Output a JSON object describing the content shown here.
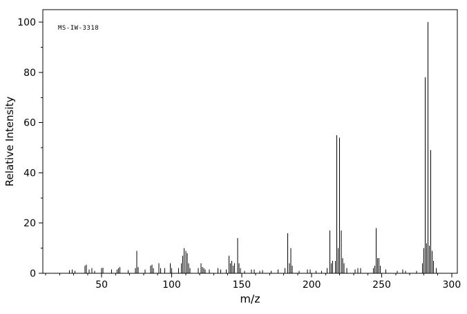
{
  "annotation": "MS-IW-3318",
  "colors": {
    "axis": "#000000",
    "peak": "#000000",
    "background": "#ffffff"
  },
  "chart_data": {
    "type": "bar",
    "subtype": "mass-spectrum-stick-plot",
    "xlabel": "m/z",
    "ylabel": "Relative Intensity",
    "xlim": [
      8,
      304
    ],
    "ylim": [
      0,
      105
    ],
    "xticks_major": [
      50,
      100,
      150,
      200,
      250,
      300
    ],
    "xticks_minor_step": 10,
    "yticks_major": [
      0,
      20,
      40,
      60,
      80,
      100
    ],
    "yticks_minor_step": 10,
    "grid": false,
    "legend": false,
    "peaks": [
      [
        27,
        1.2
      ],
      [
        29,
        1.5
      ],
      [
        31,
        1
      ],
      [
        38,
        3
      ],
      [
        39,
        3.5
      ],
      [
        41,
        1.5
      ],
      [
        43,
        2
      ],
      [
        45,
        1
      ],
      [
        50,
        2
      ],
      [
        51,
        2.2
      ],
      [
        57,
        1.5
      ],
      [
        61,
        1.5
      ],
      [
        62,
        2
      ],
      [
        63,
        2.5
      ],
      [
        69,
        1.2
      ],
      [
        74,
        2
      ],
      [
        75,
        9
      ],
      [
        76,
        2.5
      ],
      [
        81,
        1.5
      ],
      [
        85,
        3
      ],
      [
        86,
        3.5
      ],
      [
        87,
        2
      ],
      [
        91,
        4
      ],
      [
        92,
        2
      ],
      [
        95,
        2
      ],
      [
        99,
        4
      ],
      [
        100,
        2
      ],
      [
        105,
        2
      ],
      [
        107,
        4
      ],
      [
        108,
        7
      ],
      [
        109,
        10
      ],
      [
        110,
        9
      ],
      [
        111,
        8
      ],
      [
        112,
        4
      ],
      [
        113,
        2
      ],
      [
        119,
        2
      ],
      [
        121,
        4
      ],
      [
        122,
        2.5
      ],
      [
        123,
        2
      ],
      [
        124,
        1.5
      ],
      [
        127,
        1.5
      ],
      [
        133,
        2
      ],
      [
        135,
        1.5
      ],
      [
        139,
        1.5
      ],
      [
        141,
        7
      ],
      [
        142,
        4
      ],
      [
        143,
        5
      ],
      [
        144,
        3
      ],
      [
        145,
        4
      ],
      [
        147,
        14
      ],
      [
        148,
        4
      ],
      [
        149,
        2
      ],
      [
        152,
        1
      ],
      [
        157,
        1.5
      ],
      [
        159,
        1.5
      ],
      [
        163,
        1
      ],
      [
        165,
        1.2
      ],
      [
        171,
        1
      ],
      [
        176,
        1.5
      ],
      [
        181,
        2
      ],
      [
        183,
        16
      ],
      [
        184,
        4
      ],
      [
        185,
        10
      ],
      [
        186,
        3
      ],
      [
        191,
        1
      ],
      [
        197,
        1.5
      ],
      [
        199,
        1.5
      ],
      [
        203,
        1
      ],
      [
        207,
        1
      ],
      [
        211,
        2
      ],
      [
        213,
        17
      ],
      [
        214,
        4
      ],
      [
        215,
        5
      ],
      [
        217,
        5
      ],
      [
        218,
        55
      ],
      [
        219,
        10
      ],
      [
        220,
        54
      ],
      [
        221,
        17
      ],
      [
        222,
        6
      ],
      [
        223,
        4
      ],
      [
        225,
        2
      ],
      [
        231,
        1.5
      ],
      [
        233,
        2
      ],
      [
        235,
        2
      ],
      [
        244,
        2
      ],
      [
        245,
        3
      ],
      [
        246,
        18
      ],
      [
        247,
        6
      ],
      [
        248,
        6
      ],
      [
        249,
        3
      ],
      [
        253,
        1.5
      ],
      [
        261,
        1
      ],
      [
        265,
        1.5
      ],
      [
        267,
        1
      ],
      [
        275,
        1
      ],
      [
        279,
        4
      ],
      [
        280,
        10
      ],
      [
        281,
        78
      ],
      [
        282,
        12
      ],
      [
        283,
        100
      ],
      [
        284,
        11
      ],
      [
        285,
        49
      ],
      [
        286,
        9
      ],
      [
        287,
        5
      ],
      [
        289,
        2
      ]
    ]
  }
}
